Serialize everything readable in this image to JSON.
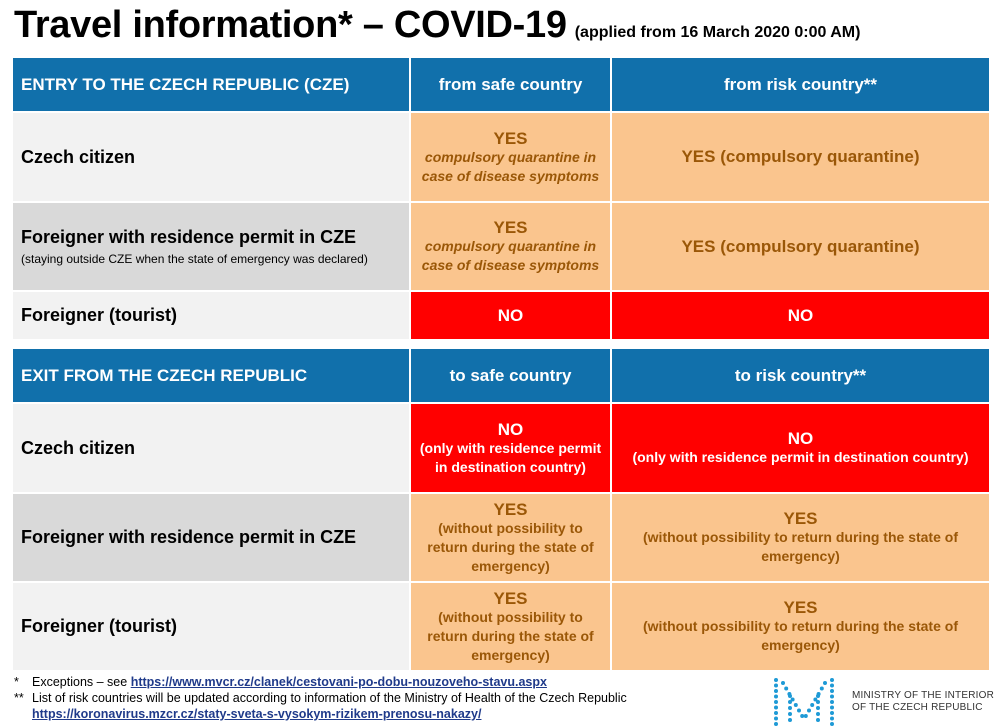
{
  "title": {
    "main": "Travel information* – COVID-19",
    "sub": "(applied from 16 March 2020 0:00 AM)"
  },
  "entry": {
    "header": {
      "label": "ENTRY TO THE CZECH REPUBLIC (CZE)",
      "col_safe": "from safe country",
      "col_risk": "from risk country**"
    },
    "rows": [
      {
        "label": "Czech citizen",
        "note": "",
        "safe": {
          "main": "YES",
          "detail": "compulsory quarantine in case of disease symptoms"
        },
        "risk": {
          "main": "YES (compulsory quarantine)"
        }
      },
      {
        "label": "Foreigner with residence permit in CZE",
        "note": "(staying outside CZE when the state of emergency was declared)",
        "safe": {
          "main": "YES",
          "detail": "compulsory quarantine in case of disease symptoms"
        },
        "risk": {
          "main": "YES (compulsory quarantine)"
        }
      },
      {
        "label": "Foreigner (tourist)",
        "note": "",
        "safe": {
          "main": "NO"
        },
        "risk": {
          "main": "NO"
        }
      }
    ]
  },
  "exit": {
    "header": {
      "label": "EXIT FROM THE CZECH REPUBLIC",
      "col_safe": "to safe country",
      "col_risk": "to risk country**"
    },
    "rows": [
      {
        "label": "Czech citizen",
        "safe": {
          "main": "NO",
          "detail": "(only with residence permit in destination country)"
        },
        "risk": {
          "main": "NO",
          "detail": "(only with residence permit in destination country)"
        }
      },
      {
        "label": "Foreigner with residence permit in CZE",
        "safe": {
          "main": "YES",
          "detail": "(without possibility to return during the state of emergency)"
        },
        "risk": {
          "main": "YES",
          "detail": "(without possibility to return during the state of emergency)"
        }
      },
      {
        "label": "Foreigner (tourist)",
        "safe": {
          "main": "YES",
          "detail": "(without possibility to return during the state of emergency)"
        },
        "risk": {
          "main": "YES",
          "detail": "(without possibility to return during the state of emergency)"
        }
      }
    ]
  },
  "footnotes": {
    "f1_mark": "*",
    "f1_text": "Exceptions – see ",
    "f1_link": "https://www.mvcr.cz/clanek/cestovani-po-dobu-nouzoveho-stavu.aspx",
    "f2_mark": "**",
    "f2_text": "List of risk countries will be updated according to information of the Ministry of Health of the Czech Republic",
    "f2_link": "https://koronavirus.mzcr.cz/staty-sveta-s-vysokym-rizikem-prenosu-nakazy/"
  },
  "ministry": {
    "line1": "MINISTRY OF THE INTERIOR",
    "line2": "OF THE CZECH REPUBLIC"
  },
  "colors": {
    "header_blue": "#1170ab",
    "orange": "#fac58e",
    "orange_text": "#9a5707",
    "red": "#ff0000",
    "label_grey": "#d9d9d9",
    "logo_blue": "#1e9ad6"
  }
}
